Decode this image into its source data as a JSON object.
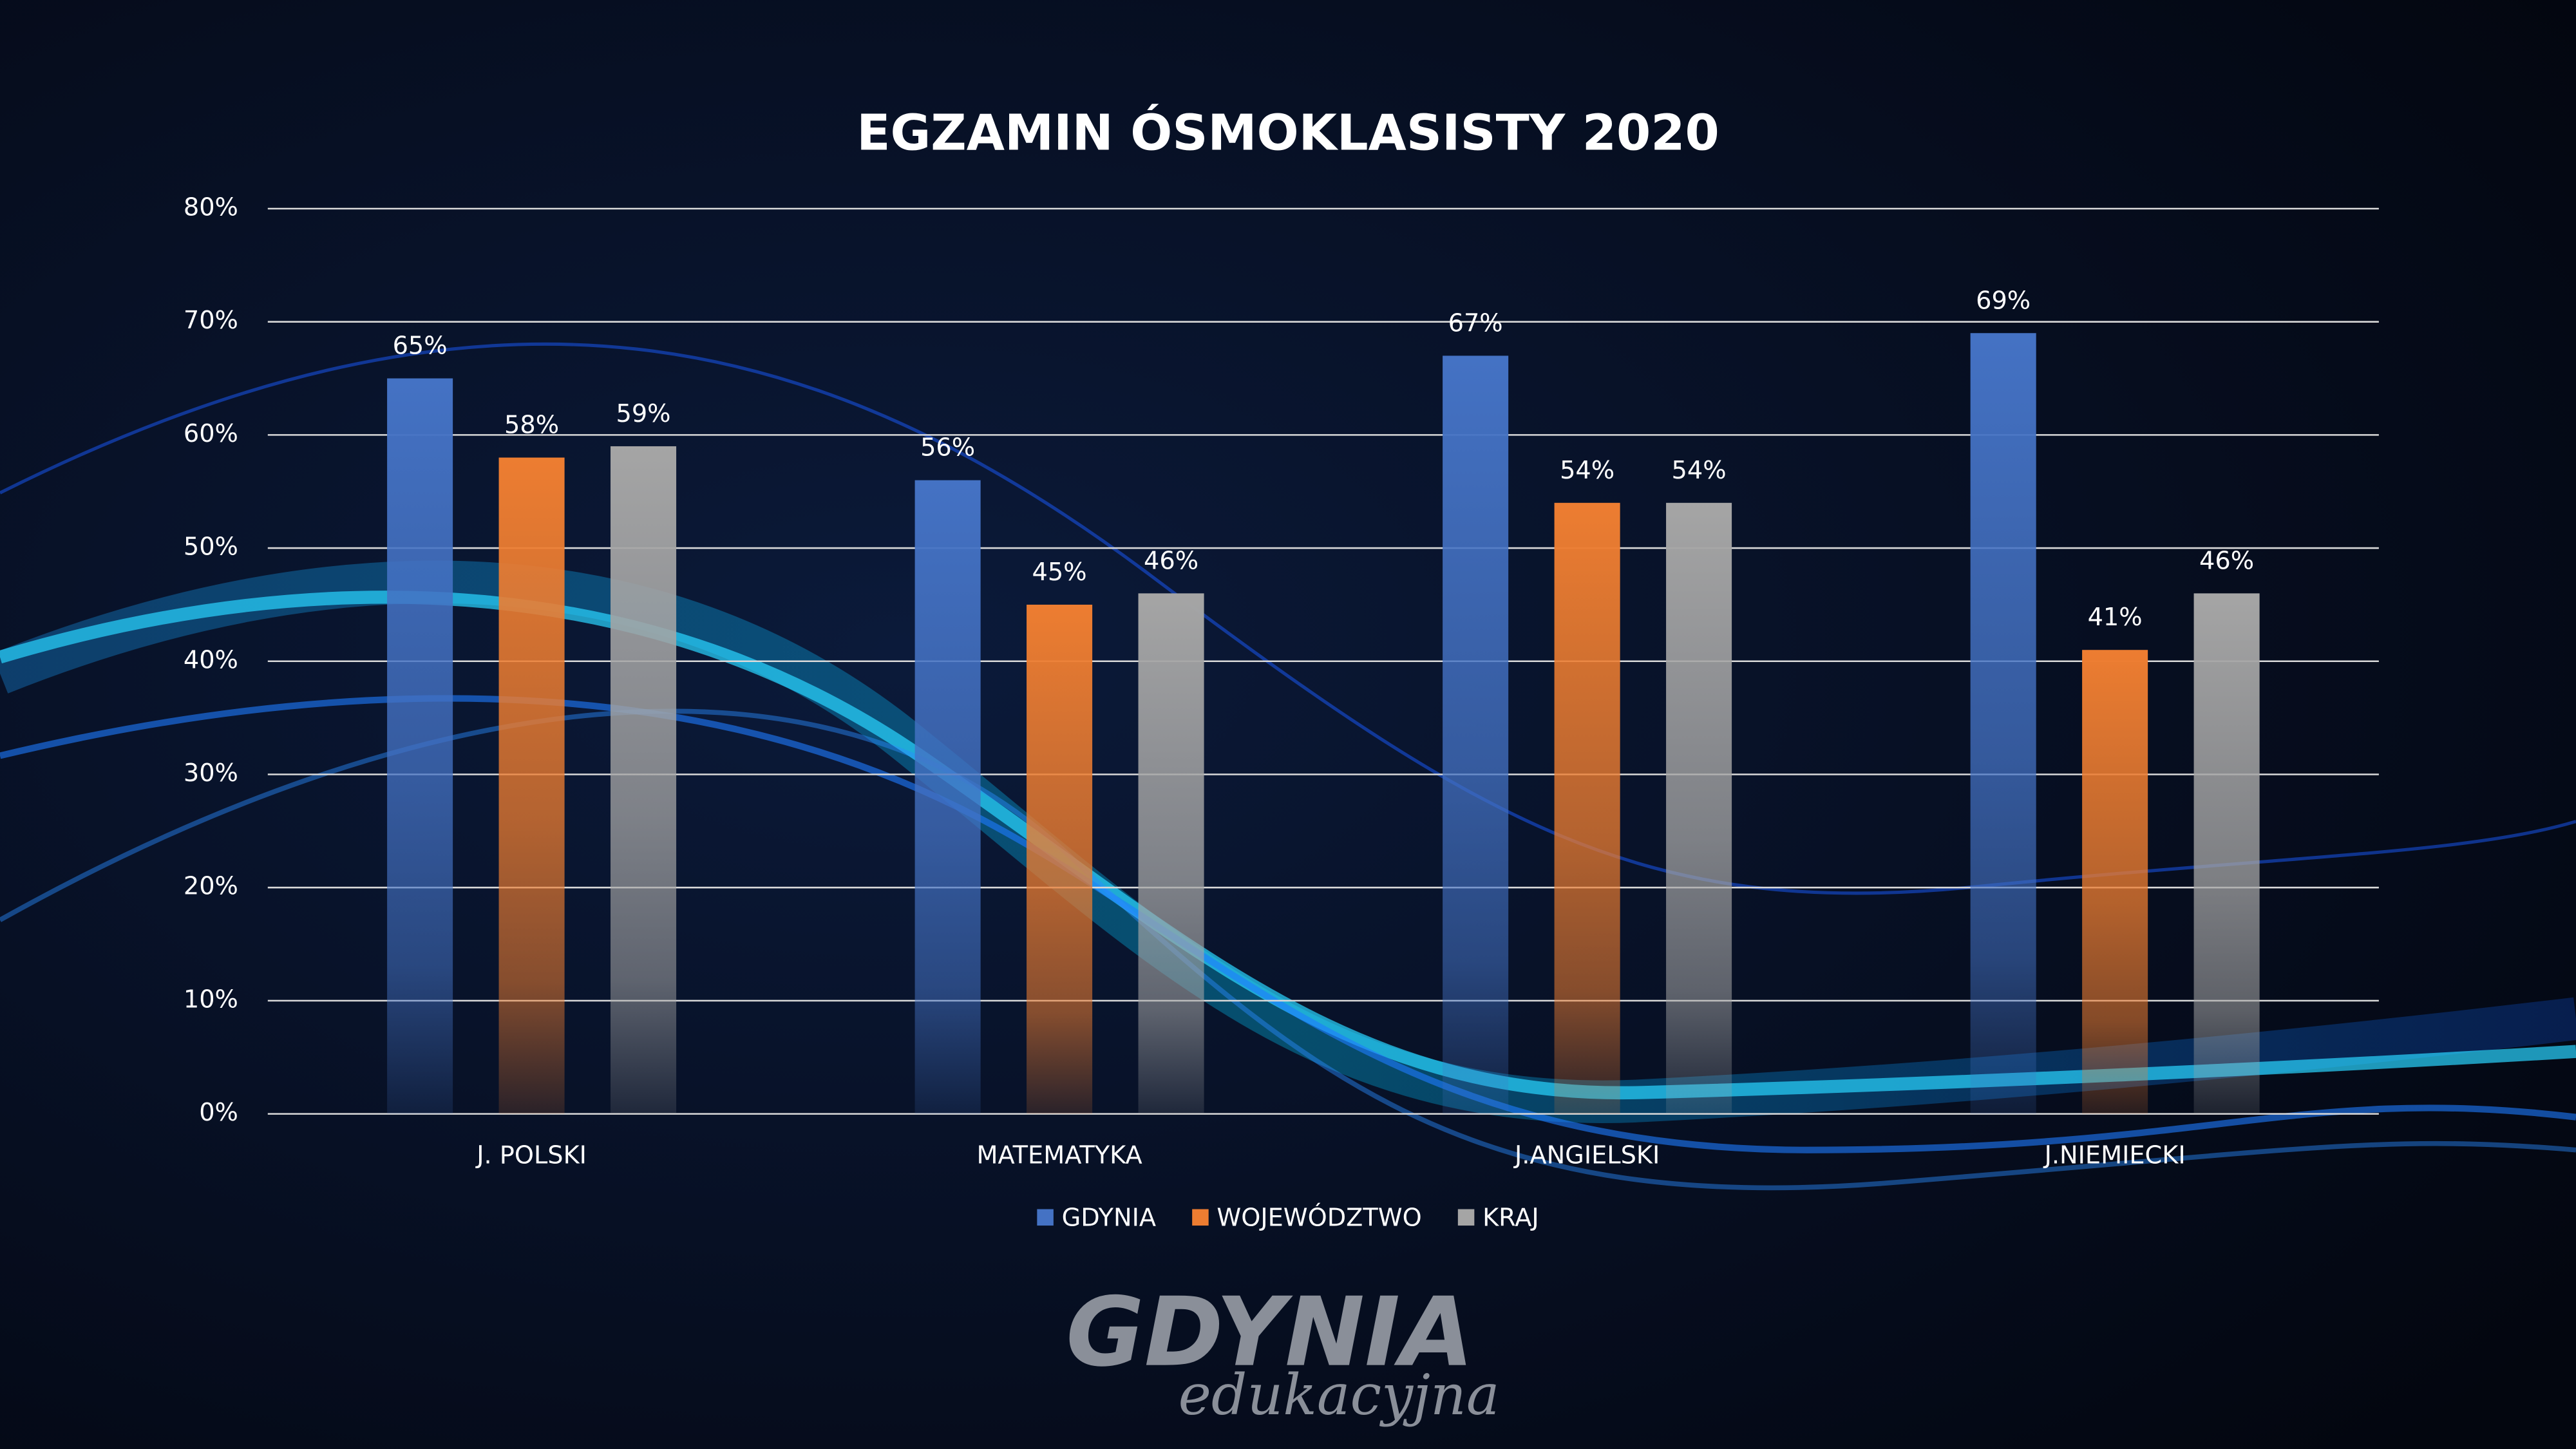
{
  "chart_data": {
    "type": "bar",
    "title": "EGZAMIN ÓSMOKLASISTY 2020",
    "categories": [
      "J. POLSKI",
      "MATEMATYKA",
      "J.ANGIELSKI",
      "J.NIEMIECKI"
    ],
    "series": [
      {
        "name": "GDYNIA",
        "color": "#4472c4",
        "values": [
          65,
          56,
          67,
          69
        ],
        "value_labels": [
          "65%",
          "56%",
          "67%",
          "69%"
        ]
      },
      {
        "name": "WOJEWÓDZTWO",
        "color": "#ed7d31",
        "values": [
          58,
          45,
          54,
          41
        ],
        "value_labels": [
          "58%",
          "45%",
          "54%",
          "41%"
        ]
      },
      {
        "name": "KRAJ",
        "color": "#a5a5a5",
        "values": [
          59,
          46,
          54,
          46
        ],
        "value_labels": [
          "59%",
          "46%",
          "54%",
          "46%"
        ]
      }
    ],
    "ylim": [
      0,
      80
    ],
    "yticks": [
      {
        "value": 0,
        "label": "0%"
      },
      {
        "value": 10,
        "label": "10%"
      },
      {
        "value": 20,
        "label": "20%"
      },
      {
        "value": 30,
        "label": "30%"
      },
      {
        "value": 40,
        "label": "40%"
      },
      {
        "value": 50,
        "label": "50%"
      },
      {
        "value": 60,
        "label": "60%"
      },
      {
        "value": 70,
        "label": "70%"
      },
      {
        "value": 80,
        "label": "80%"
      }
    ],
    "grid": true,
    "legend": "bottom"
  },
  "logo": {
    "text": "GDYNIA",
    "tagline": "edukacyjna"
  }
}
